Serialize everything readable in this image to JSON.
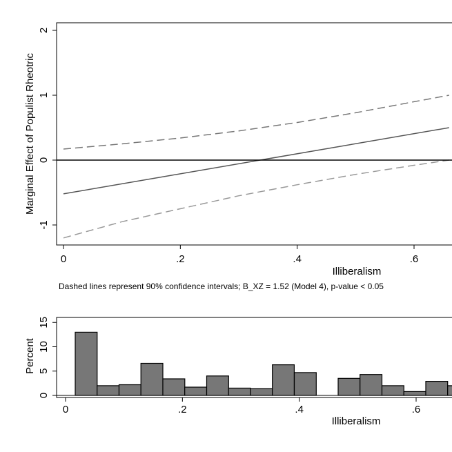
{
  "chart_data": [
    {
      "type": "line",
      "title": "",
      "xlabel": "Illiberalism",
      "ylabel": "Marginal Effect of Populist Rheotric",
      "xlim": [
        0,
        0.66
      ],
      "ylim": [
        -1.3,
        2.1
      ],
      "x_ticks": [
        0,
        0.2,
        0.4,
        0.6
      ],
      "x_tick_labels": [
        "0",
        ".2",
        ".4",
        ".6"
      ],
      "y_ticks": [
        -1,
        0,
        1,
        2
      ],
      "y_tick_labels": [
        "-1",
        "0",
        "1",
        "2"
      ],
      "reference_line_y": 0,
      "grid": false,
      "note": "Dashed lines represent 90% confidence intervals; B_XZ = 1.52 (Model 4), p-value < 0.05",
      "series": [
        {
          "style": "solid",
          "color": "#555555",
          "x": [
            0,
            0.66
          ],
          "y": [
            -0.52,
            0.5
          ]
        },
        {
          "style": "dashed",
          "color": "#777777",
          "x": [
            0,
            0.1,
            0.2,
            0.3,
            0.4,
            0.5,
            0.6,
            0.66
          ],
          "y": [
            0.17,
            0.25,
            0.34,
            0.45,
            0.58,
            0.73,
            0.9,
            1.0
          ]
        },
        {
          "style": "dashed",
          "color": "#999999",
          "x": [
            0,
            0.1,
            0.2,
            0.3,
            0.4,
            0.5,
            0.6,
            0.66
          ],
          "y": [
            -1.2,
            -0.95,
            -0.75,
            -0.55,
            -0.38,
            -0.22,
            -0.08,
            0.0
          ]
        }
      ]
    },
    {
      "type": "bar",
      "title": "",
      "xlabel": "Illiberalism",
      "ylabel": "Percent",
      "xlim": [
        0,
        0.66
      ],
      "ylim": [
        0,
        17
      ],
      "x_ticks": [
        0,
        0.2,
        0.4,
        0.6
      ],
      "x_tick_labels": [
        "0",
        ".2",
        ".4",
        ".6"
      ],
      "y_ticks": [
        0,
        5,
        10,
        15
      ],
      "y_tick_labels": [
        "0",
        "5",
        "10",
        "15"
      ],
      "grid": false,
      "bin_width": 0.0375,
      "bar_color": "#777777",
      "bins": [
        {
          "start": 0.0165,
          "value": 13.0
        },
        {
          "start": 0.054,
          "value": 2.0
        },
        {
          "start": 0.0915,
          "value": 2.2
        },
        {
          "start": 0.129,
          "value": 6.6
        },
        {
          "start": 0.1665,
          "value": 3.4
        },
        {
          "start": 0.204,
          "value": 1.7
        },
        {
          "start": 0.2415,
          "value": 4.0
        },
        {
          "start": 0.279,
          "value": 1.5
        },
        {
          "start": 0.3165,
          "value": 1.4
        },
        {
          "start": 0.354,
          "value": 6.3
        },
        {
          "start": 0.3915,
          "value": 4.7
        },
        {
          "start": 0.4665,
          "value": 3.5
        },
        {
          "start": 0.504,
          "value": 4.3
        },
        {
          "start": 0.5415,
          "value": 2.0
        },
        {
          "start": 0.579,
          "value": 0.8
        },
        {
          "start": 0.6165,
          "value": 2.9
        },
        {
          "start": 0.654,
          "value": 2.0
        }
      ]
    }
  ]
}
